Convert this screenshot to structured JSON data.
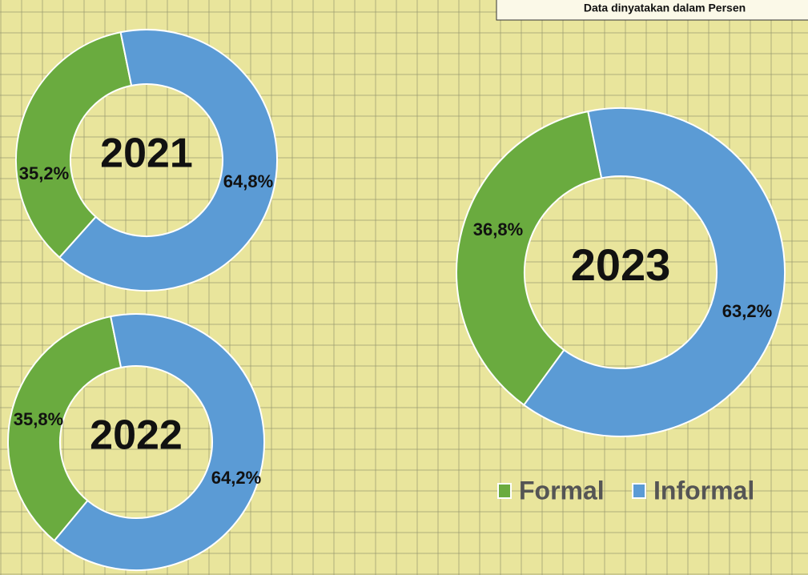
{
  "chart_data": {
    "type": "donut",
    "subtitle": "Data dinyatakan dalam Persen",
    "categories": [
      "2021",
      "2022",
      "2023"
    ],
    "series": [
      {
        "name": "Formal",
        "color": "#6aab3f",
        "values": [
          35.2,
          35.8,
          36.8
        ],
        "value_labels": [
          "35,2%",
          "35,8%",
          "36,8%"
        ]
      },
      {
        "name": "Informal",
        "color": "#5b9bd5",
        "values": [
          64.8,
          64.2,
          63.2
        ],
        "value_labels": [
          "64,8%",
          "64,2%",
          "63,2%"
        ]
      }
    ]
  }
}
